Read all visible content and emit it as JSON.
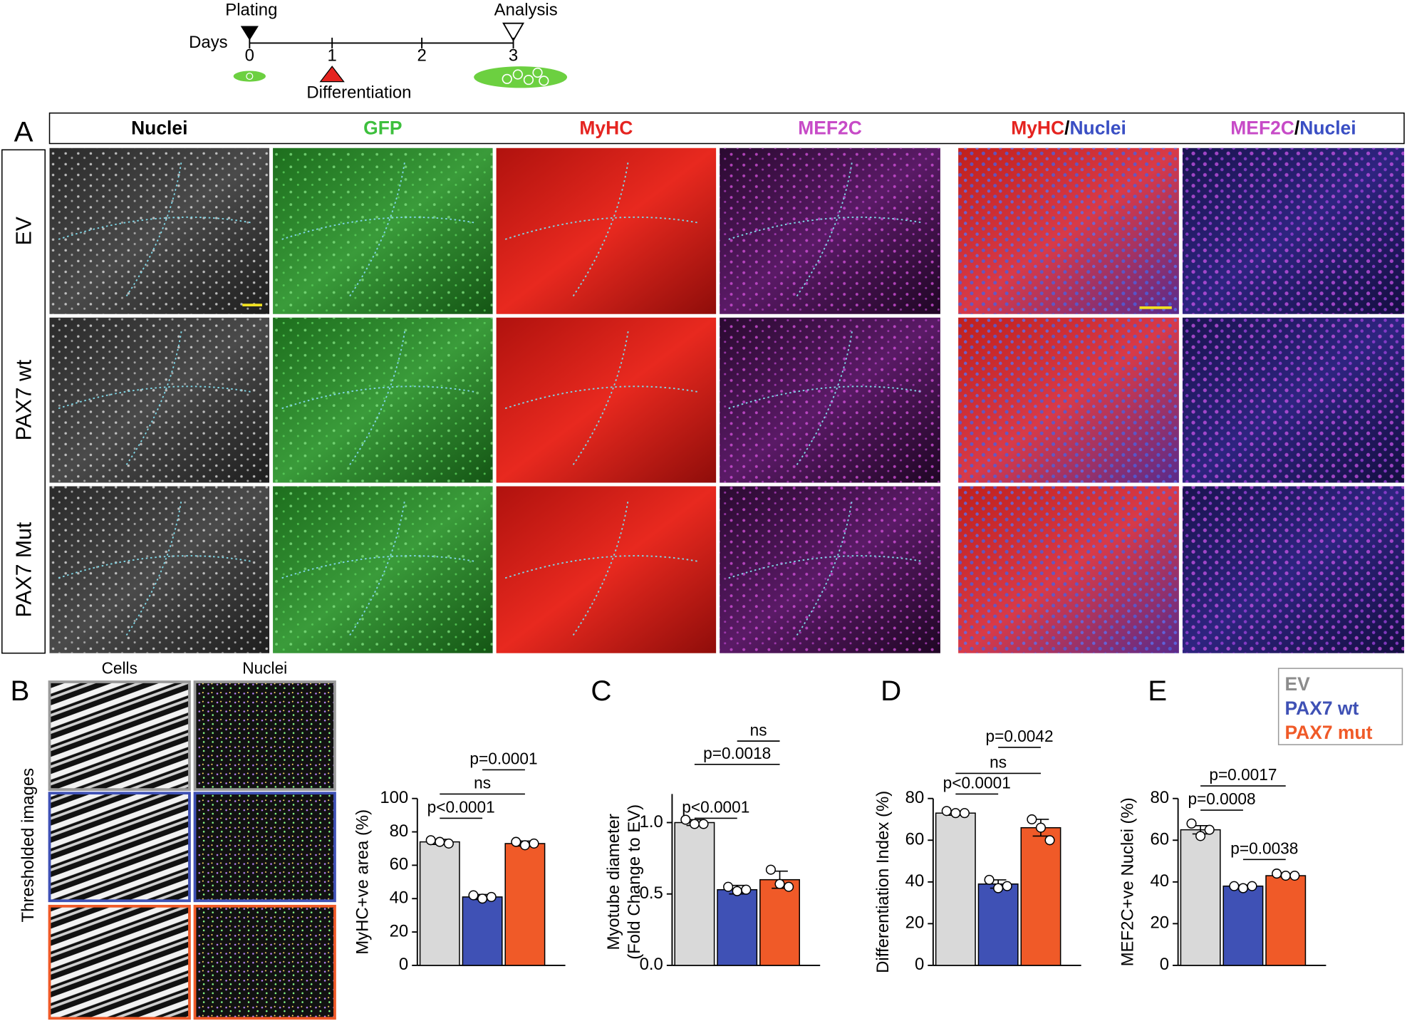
{
  "timeline": {
    "days": "Days",
    "ticks": [
      "0",
      "1",
      "2",
      "3"
    ],
    "plating": "Plating",
    "analysis": "Analysis",
    "differentiation": "Differentiation"
  },
  "panel_a": {
    "letter": "A",
    "columns": [
      [
        {
          "text": "Nuclei",
          "color": "#000000"
        }
      ],
      [
        {
          "text": "GFP",
          "color": "#3dbf3d"
        }
      ],
      [
        {
          "text": "MyHC",
          "color": "#e52420"
        }
      ],
      [
        {
          "text": "MEF2C",
          "color": "#c74bc7"
        }
      ],
      [
        {
          "text": "MyHC",
          "color": "#e52420"
        },
        {
          "text": "/",
          "color": "#000000"
        },
        {
          "text": "Nuclei",
          "color": "#3a4fc4"
        }
      ],
      [
        {
          "text": "MEF2C",
          "color": "#c74bc7"
        },
        {
          "text": "/",
          "color": "#000000"
        },
        {
          "text": "Nuclei",
          "color": "#3a4fc4"
        }
      ]
    ],
    "rows": [
      "EV",
      "PAX7 wt",
      "PAX7 Mut"
    ]
  },
  "panel_b": {
    "letter": "B",
    "cells": "Cells",
    "nuclei": "Nuclei",
    "side": "Thresholded images"
  },
  "legend": [
    {
      "name": "EV",
      "color": "#8c8c8c"
    },
    {
      "name": "PAX7 wt",
      "color": "#3f51b5"
    },
    {
      "name": "PAX7 mut",
      "color": "#f05a28"
    }
  ],
  "chart_data": [
    {
      "type": "bar",
      "ylabel": [
        "MyHC+ve area (%)"
      ],
      "ylim": [
        0,
        100
      ],
      "yticks": [
        0,
        20,
        40,
        60,
        80,
        100
      ],
      "colors": [
        "#d9d9d9",
        "#3f51b5",
        "#f05a28"
      ],
      "values": [
        74,
        41,
        73
      ],
      "errors": [
        1.5,
        1.5,
        1.5
      ],
      "points": [
        [
          75,
          74,
          73
        ],
        [
          42,
          40,
          41
        ],
        [
          74,
          72,
          73
        ]
      ],
      "annotations": [
        "p<0.0001",
        "ns",
        "p=0.0001"
      ]
    },
    {
      "type": "bar",
      "letter": "C",
      "ylabel": [
        "Myotube diameter",
        "(Fold Change to EV)"
      ],
      "ylim": [
        0,
        1.2
      ],
      "yticks": [
        {
          "value": 0,
          "label": "0.0"
        },
        0.5,
        {
          "value": 1,
          "label": "1.0"
        }
      ],
      "colors": [
        "#d9d9d9",
        "#3f51b5",
        "#f05a28"
      ],
      "values": [
        1.0,
        0.53,
        0.6
      ],
      "errors": [
        0.02,
        0.03,
        0.06
      ],
      "points": [
        [
          1.02,
          0.99,
          0.99
        ],
        [
          0.55,
          0.52,
          0.53
        ],
        [
          0.67,
          0.57,
          0.55
        ]
      ],
      "annotations": [
        "p<0.0001",
        "p=0.0018",
        "ns"
      ]
    },
    {
      "type": "bar",
      "letter": "D",
      "ylabel": [
        "Differentiation Index (%)"
      ],
      "ylim": [
        0,
        80
      ],
      "yticks": [
        0,
        20,
        40,
        60,
        80
      ],
      "colors": [
        "#d9d9d9",
        "#3f51b5",
        "#f05a28"
      ],
      "values": [
        73,
        39,
        66
      ],
      "errors": [
        1,
        2,
        4
      ],
      "points": [
        [
          74,
          73,
          73
        ],
        [
          41,
          37,
          38
        ],
        [
          70,
          66,
          60
        ]
      ],
      "annotations": [
        "p<0.0001",
        "ns",
        "p=0.0042"
      ]
    },
    {
      "type": "bar",
      "letter": "E",
      "ylabel": [
        "MEF2C+ve Nuclei (%)"
      ],
      "ylim": [
        0,
        80
      ],
      "yticks": [
        0,
        20,
        40,
        60,
        80
      ],
      "colors": [
        "#d9d9d9",
        "#3f51b5",
        "#f05a28"
      ],
      "values": [
        65,
        38,
        43
      ],
      "errors": [
        2,
        0.5,
        0.5
      ],
      "points": [
        [
          68,
          62,
          65
        ],
        [
          38,
          37,
          38
        ],
        [
          44,
          43,
          43
        ]
      ],
      "annotations": [
        "p=0.0008",
        "p=0.0017",
        "p=0.0038"
      ]
    }
  ]
}
